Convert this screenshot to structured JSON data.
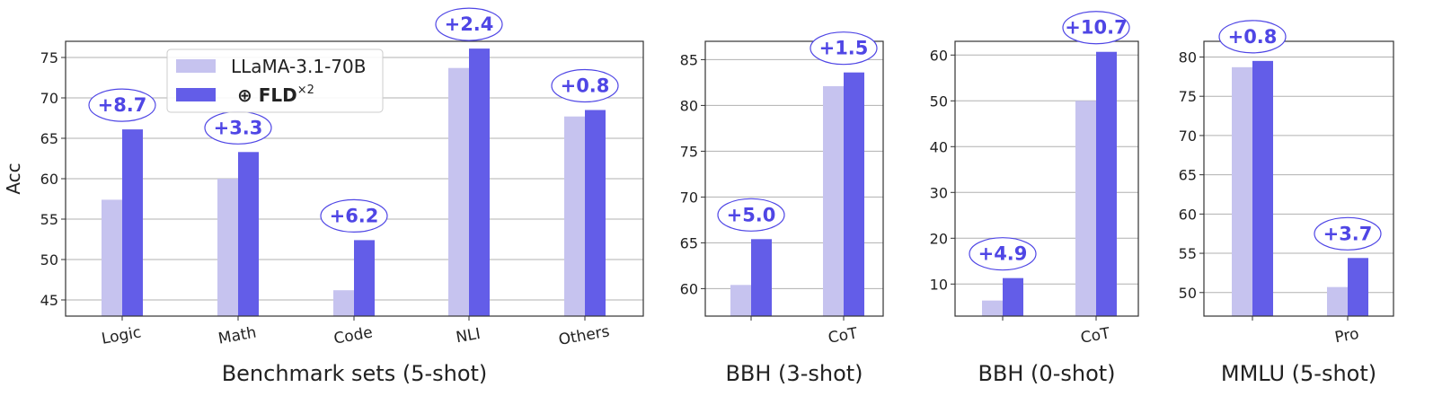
{
  "colors": {
    "base": "#c6c3ef",
    "fld": "#635de8",
    "annotation": "#4f46e5",
    "grid": "#b0b0b0",
    "frame": "#333333"
  },
  "legend": {
    "base_label": "LLaMA-3.1-70B",
    "fld_label": "⊕ FLD",
    "fld_superscript": "×2"
  },
  "chart_data": [
    {
      "type": "bar",
      "xlabel": "Benchmark sets (5-shot)",
      "ylabel": "Acc",
      "ylim": [
        43,
        77
      ],
      "yticks": [
        45,
        50,
        55,
        60,
        65,
        70,
        75
      ],
      "grid": "horizontal",
      "legend_position": "top-left",
      "categories": [
        "Logic",
        "Math",
        "Code",
        "NLI",
        "Others"
      ],
      "series": [
        {
          "name": "LLaMA-3.1-70B",
          "values": [
            57.4,
            60.0,
            46.2,
            73.7,
            67.7
          ]
        },
        {
          "name": "⊕ FLD×2",
          "values": [
            66.1,
            63.3,
            52.4,
            76.1,
            68.5
          ]
        }
      ],
      "annotations": [
        "+8.7",
        "+3.3",
        "+6.2",
        "+2.4",
        "+0.8"
      ]
    },
    {
      "type": "bar",
      "xlabel": "BBH (3-shot)",
      "ylabel": "",
      "ylim": [
        57,
        87
      ],
      "yticks": [
        60,
        65,
        70,
        75,
        80,
        85
      ],
      "grid": "horizontal",
      "categories": [
        "",
        "CoT"
      ],
      "series": [
        {
          "name": "LLaMA-3.1-70B",
          "values": [
            60.4,
            82.1
          ]
        },
        {
          "name": "⊕ FLD×2",
          "values": [
            65.4,
            83.6
          ]
        }
      ],
      "annotations": [
        "+5.0",
        "+1.5"
      ]
    },
    {
      "type": "bar",
      "xlabel": "BBH (0-shot)",
      "ylabel": "",
      "ylim": [
        3,
        63
      ],
      "yticks": [
        10,
        20,
        30,
        40,
        50,
        60
      ],
      "grid": "horizontal",
      "categories": [
        "",
        "CoT"
      ],
      "series": [
        {
          "name": "LLaMA-3.1-70B",
          "values": [
            6.4,
            50.0
          ]
        },
        {
          "name": "⊕ FLD×2",
          "values": [
            11.3,
            60.7
          ]
        }
      ],
      "annotations": [
        "+4.9",
        "+10.7"
      ]
    },
    {
      "type": "bar",
      "xlabel": "MMLU (5-shot)",
      "ylabel": "",
      "ylim": [
        47,
        82
      ],
      "yticks": [
        50,
        55,
        60,
        65,
        70,
        75,
        80
      ],
      "grid": "horizontal",
      "categories": [
        "",
        "Pro"
      ],
      "series": [
        {
          "name": "LLaMA-3.1-70B",
          "values": [
            78.7,
            50.7
          ]
        },
        {
          "name": "⊕ FLD×2",
          "values": [
            79.5,
            54.4
          ]
        }
      ],
      "annotations": [
        "+0.8",
        "+3.7"
      ]
    }
  ]
}
